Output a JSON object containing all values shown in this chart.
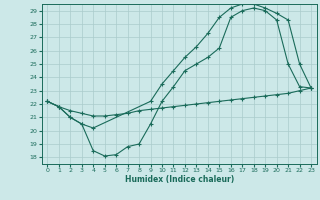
{
  "xlabel": "Humidex (Indice chaleur)",
  "xlim": [
    -0.5,
    23.5
  ],
  "ylim": [
    17.5,
    29.5
  ],
  "xticks": [
    0,
    1,
    2,
    3,
    4,
    5,
    6,
    7,
    8,
    9,
    10,
    11,
    12,
    13,
    14,
    15,
    16,
    17,
    18,
    19,
    20,
    21,
    22,
    23
  ],
  "yticks": [
    18,
    19,
    20,
    21,
    22,
    23,
    24,
    25,
    26,
    27,
    28,
    29
  ],
  "bg_color": "#cce8e8",
  "grid_color": "#aacccc",
  "line_color": "#1a6b5a",
  "line1_x": [
    0,
    1,
    2,
    3,
    4,
    5,
    6,
    7,
    8,
    9,
    10,
    11,
    12,
    13,
    14,
    15,
    16,
    17,
    18,
    19,
    20,
    21,
    22,
    23
  ],
  "line1_y": [
    22.2,
    21.8,
    21.0,
    20.5,
    18.5,
    18.1,
    18.2,
    18.8,
    19.0,
    20.5,
    22.2,
    23.3,
    24.5,
    25.0,
    25.5,
    26.2,
    28.5,
    29.0,
    29.2,
    29.0,
    28.3,
    25.0,
    23.3,
    23.2
  ],
  "line2_x": [
    0,
    1,
    2,
    3,
    4,
    9,
    10,
    11,
    12,
    13,
    14,
    15,
    16,
    17,
    18,
    19,
    20,
    21,
    22,
    23
  ],
  "line2_y": [
    22.2,
    21.8,
    21.0,
    20.5,
    20.2,
    22.2,
    23.5,
    24.5,
    25.5,
    26.3,
    27.3,
    28.5,
    29.2,
    29.5,
    29.5,
    29.2,
    28.8,
    28.3,
    25.0,
    23.2
  ],
  "line3_x": [
    0,
    1,
    2,
    3,
    4,
    5,
    6,
    7,
    8,
    9,
    10,
    11,
    12,
    13,
    14,
    15,
    16,
    17,
    18,
    19,
    20,
    21,
    22,
    23
  ],
  "line3_y": [
    22.2,
    21.8,
    21.5,
    21.3,
    21.1,
    21.1,
    21.2,
    21.3,
    21.5,
    21.6,
    21.7,
    21.8,
    21.9,
    22.0,
    22.1,
    22.2,
    22.3,
    22.4,
    22.5,
    22.6,
    22.7,
    22.8,
    23.0,
    23.2
  ]
}
